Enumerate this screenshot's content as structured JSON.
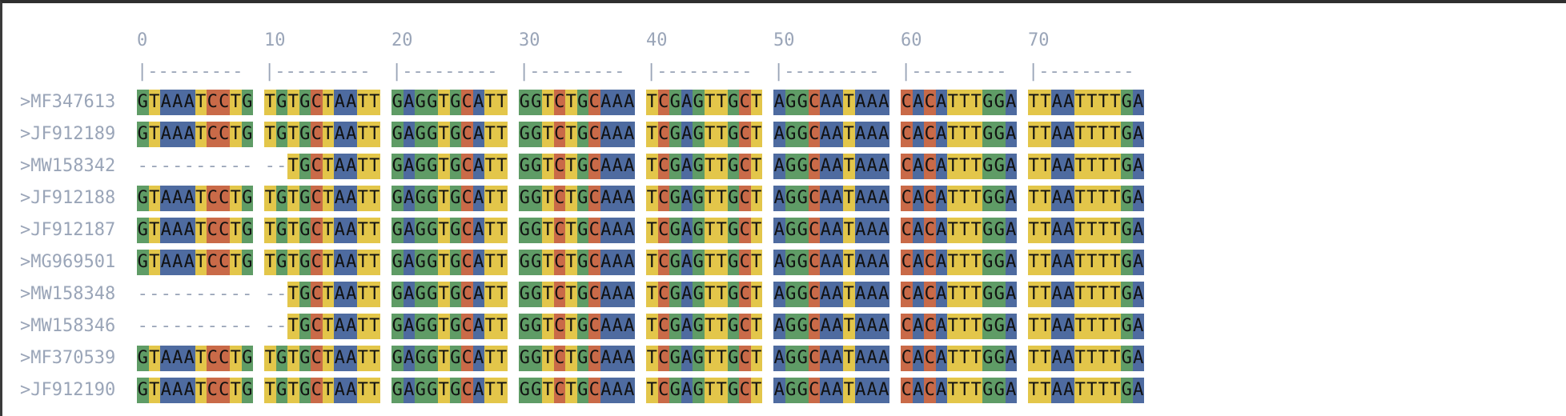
{
  "palette": {
    "A": "#4e6ba0",
    "T": "#e3c64a",
    "G": "#5f9c66",
    "C": "#c96a48",
    "muted": "#9aa5b8"
  },
  "ruler": {
    "ticks": [
      "0",
      "10",
      "20",
      "30",
      "40",
      "50",
      "60",
      "70"
    ],
    "brackets": [
      "|---------",
      "|---------",
      "|---------",
      "|---------",
      "|---------",
      "|---------",
      "|---------",
      "|---------"
    ]
  },
  "sequences": [
    {
      "id": ">MF347613",
      "blocks": [
        "GTAAATCCTG",
        "TGTGCTAATT",
        "GAGGTGCATT",
        "GGTCTGCAAA",
        "TCGAGTTGCT",
        "AGGCAATAAA",
        "CACATTTGGA",
        "TTAATTTTGA"
      ]
    },
    {
      "id": ">JF912189",
      "blocks": [
        "GTAAATCCTG",
        "TGTGCTAATT",
        "GAGGTGCATT",
        "GGTCTGCAAA",
        "TCGAGTTGCT",
        "AGGCAATAAA",
        "CACATTTGGA",
        "TTAATTTTGA"
      ]
    },
    {
      "id": ">MW158342",
      "blocks": [
        "----------",
        "--TGCTAATT",
        "GAGGTGCATT",
        "GGTCTGCAAA",
        "TCGAGTTGCT",
        "AGGCAATAAA",
        "CACATTTGGA",
        "TTAATTTTGA"
      ]
    },
    {
      "id": ">JF912188",
      "blocks": [
        "GTAAATCCTG",
        "TGTGCTAATT",
        "GAGGTGCATT",
        "GGTCTGCAAA",
        "TCGAGTTGCT",
        "AGGCAATAAA",
        "CACATTTGGA",
        "TTAATTTTGA"
      ]
    },
    {
      "id": ">JF912187",
      "blocks": [
        "GTAAATCCTG",
        "TGTGCTAATT",
        "GAGGTGCATT",
        "GGTCTGCAAA",
        "TCGAGTTGCT",
        "AGGCAATAAA",
        "CACATTTGGA",
        "TTAATTTTGA"
      ]
    },
    {
      "id": ">MG969501",
      "blocks": [
        "GTAAATCCTG",
        "TGTGCTAATT",
        "GAGGTGCATT",
        "GGTCTGCAAA",
        "TCGAGTTGCT",
        "AGGCAATAAA",
        "CACATTTGGA",
        "TTAATTTTGA"
      ]
    },
    {
      "id": ">MW158348",
      "blocks": [
        "----------",
        "--TGCTAATT",
        "GAGGTGCATT",
        "GGTCTGCAAA",
        "TCGAGTTGCT",
        "AGGCAATAAA",
        "CACATTTGGA",
        "TTAATTTTGA"
      ]
    },
    {
      "id": ">MW158346",
      "blocks": [
        "----------",
        "--TGCTAATT",
        "GAGGTGCATT",
        "GGTCTGCAAA",
        "TCGAGTTGCT",
        "AGGCAATAAA",
        "CACATTTGGA",
        "TTAATTTTGA"
      ]
    },
    {
      "id": ">MF370539",
      "blocks": [
        "GTAAATCCTG",
        "TGTGCTAATT",
        "GAGGTGCATT",
        "GGTCTGCAAA",
        "TCGAGTTGCT",
        "AGGCAATAAA",
        "CACATTTGGA",
        "TTAATTTTGA"
      ]
    },
    {
      "id": ">JF912190",
      "blocks": [
        "GTAAATCCTG",
        "TGTGCTAATT",
        "GAGGTGCATT",
        "GGTCTGCAAA",
        "TCGAGTTGCT",
        "AGGCAATAAA",
        "CACATTTGGA",
        "TTAATTTTGA"
      ]
    }
  ]
}
